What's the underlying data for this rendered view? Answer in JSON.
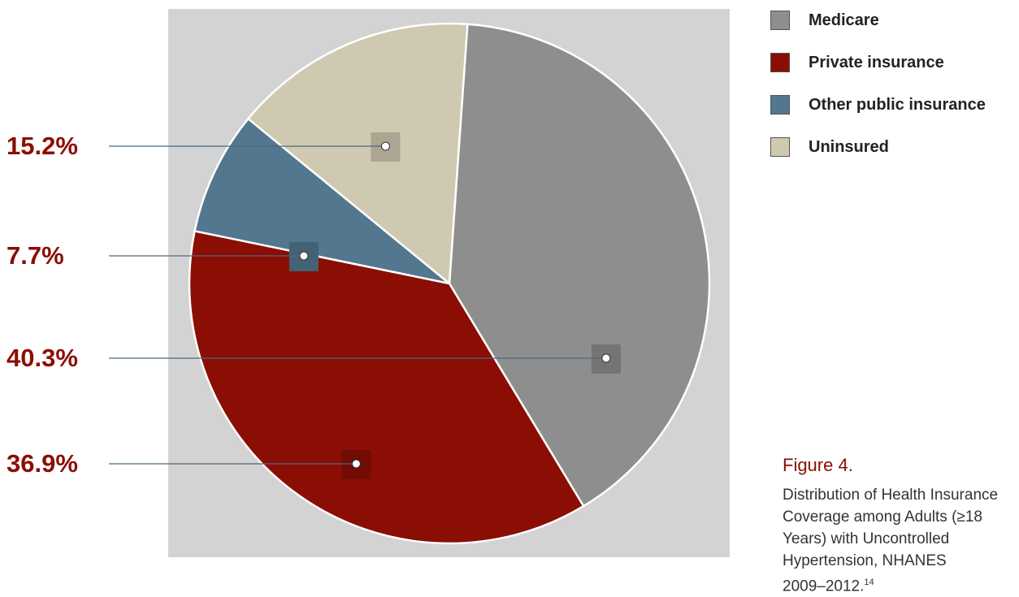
{
  "chart_data": {
    "type": "pie",
    "slices": [
      {
        "name": "Medicare",
        "value": 40.3,
        "color": "#8e8e8f",
        "label": "40.3%"
      },
      {
        "name": "Private insurance",
        "value": 36.9,
        "color": "#8b0e04",
        "label": "36.9%"
      },
      {
        "name": "Other public insurance",
        "value": 7.7,
        "color": "#52778e",
        "label": "7.7%"
      },
      {
        "name": "Uninsured",
        "value": 15.2,
        "color": "#d0c9b1",
        "label": "15.2%"
      }
    ],
    "legend_position": "top-right"
  },
  "caption": {
    "figure_number": "Figure 4.",
    "title_lines": [
      "Distribution of Health Insurance",
      "Coverage among Adults (≥18",
      "Years) with Uncontrolled",
      "Hypertension, NHANES",
      "2009–2012."
    ],
    "footnote": "14"
  },
  "colors": {
    "label_red": "#8b0e04",
    "panel_bg": "#d3d3d3"
  }
}
